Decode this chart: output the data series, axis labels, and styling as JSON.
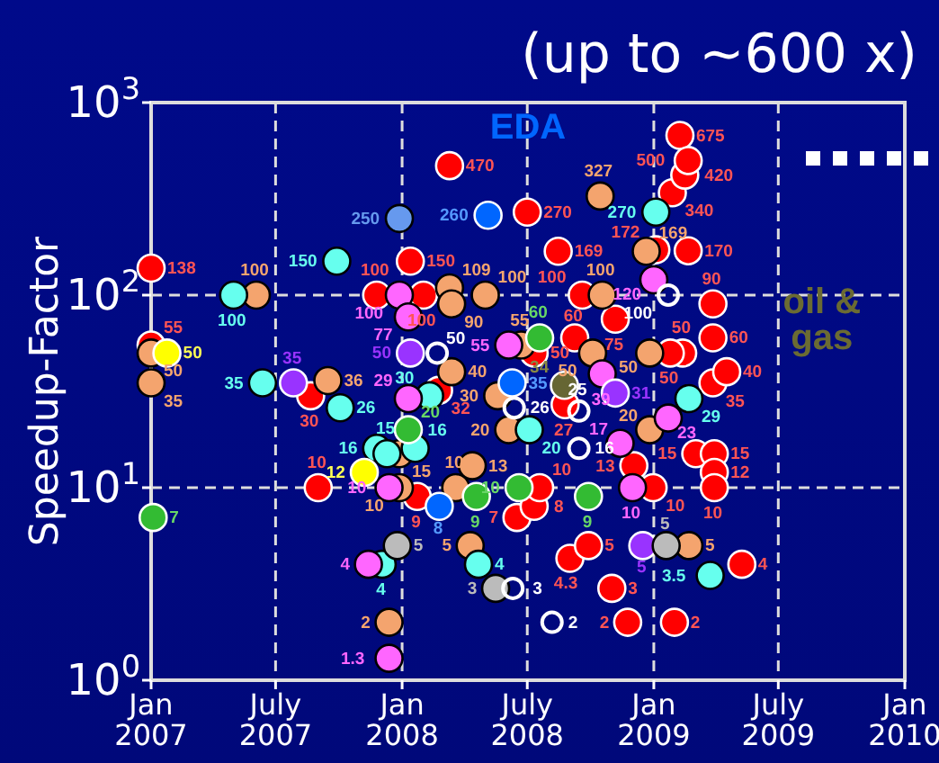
{
  "chart_data": {
    "type": "scatter",
    "title": "(up to ~600 x)",
    "ylabel": "Speedup-Factor",
    "log": "y",
    "grid": true,
    "marker": "circle",
    "data_labels": true,
    "xlim": [
      "2007-01-01",
      "2010-01-01"
    ],
    "xticks": [
      {
        "value": "2007-01-01",
        "label": "Jan 2007"
      },
      {
        "value": "2007-07-01",
        "label": "July 2007"
      },
      {
        "value": "2008-01-01",
        "label": "Jan 2008"
      },
      {
        "value": "2008-07-01",
        "label": "July 2008"
      },
      {
        "value": "2009-01-01",
        "label": "Jan 2009"
      },
      {
        "value": "2009-07-01",
        "label": "July 2009"
      },
      {
        "value": "2010-01-01",
        "label": "Jan 2010"
      }
    ],
    "ylim": [
      1,
      1000
    ],
    "yticks": [
      {
        "value": 1,
        "label": "10$^{0}$"
      },
      {
        "value": 10,
        "label": "10$^{1}$"
      },
      {
        "value": 100,
        "label": "10$^{2}$"
      },
      {
        "value": 1000,
        "label": "10$^{3}$"
      }
    ],
    "annotations": [
      "EDA",
      "oil & gas"
    ],
    "series": [
      {
        "color": "#ff0000",
        "x": [
          "2007-01-01",
          "2007-01-01",
          "2007-08-21",
          "2007-09-01",
          "2007-11-25",
          "2008-01-13",
          "2008-01-23",
          "2008-02-01",
          "2008-02-23",
          "2008-03-10",
          "2008-06-16",
          "2008-07-01",
          "2008-07-11",
          "2008-07-11",
          "2008-07-19",
          "2008-08-15",
          "2008-08-25",
          "2008-09-01",
          "2008-09-08",
          "2008-09-19",
          "2008-09-28",
          "2008-11-01",
          "2008-11-06",
          "2008-11-24",
          "2008-12-03",
          "2008-12-31",
          "2009-01-04",
          "2009-02-12",
          "2009-01-25",
          "2009-01-28",
          "2009-01-31",
          "2009-02-08",
          "2009-02-15",
          "2009-02-20",
          "2009-02-20",
          "2009-03-03",
          "2009-03-28",
          "2009-03-28",
          "2009-03-28",
          "2009-03-30",
          "2009-03-30",
          "2009-03-30",
          "2009-04-17",
          "2009-05-09"
        ],
        "values": [
          138,
          55,
          30,
          10,
          100,
          150,
          9,
          100,
          32,
          470,
          7,
          270,
          8,
          50,
          10,
          169,
          27,
          4.3,
          60,
          100,
          5,
          3,
          75,
          2,
          13,
          10,
          172,
          50,
          50,
          340,
          2,
          675,
          420,
          500,
          170,
          15,
          90,
          60,
          35,
          15,
          12,
          10,
          40,
          4
        ]
      },
      {
        "color": "#f4a46e",
        "x": [
          "2007-01-01",
          "2007-01-01",
          "2007-06-03",
          "2007-09-15",
          "2007-12-13",
          "2007-12-28",
          "2007-12-28",
          "2008-03-10",
          "2008-03-13",
          "2008-03-13",
          "2008-03-19",
          "2008-04-09",
          "2008-04-12",
          "2008-05-01",
          "2008-05-19",
          "2008-06-04",
          "2008-06-22",
          "2008-10-04",
          "2008-10-15",
          "2008-10-18",
          "2008-12-21",
          "2008-12-26",
          "2008-12-26",
          "2009-02-21"
        ],
        "values": [
          50,
          35,
          100,
          36,
          2,
          15,
          10,
          109,
          90,
          40,
          10,
          5,
          13,
          100,
          30,
          20,
          55,
          50,
          327,
          100,
          169,
          50,
          20,
          5
        ]
      },
      {
        "color": "#66ffee",
        "x": [
          "2007-05-01",
          "2007-06-12",
          "2007-09-28",
          "2007-10-03",
          "2007-11-25",
          "2007-12-03",
          "2007-12-10",
          "2008-01-20",
          "2008-02-10",
          "2008-04-21",
          "2008-07-04",
          "2009-01-04",
          "2009-02-21",
          "2009-03-24"
        ],
        "values": [
          100,
          35,
          150,
          26,
          16,
          4,
          15,
          16,
          30,
          4,
          20,
          270,
          29,
          3.5
        ]
      },
      {
        "color": "#ff66ff",
        "x": [
          "2007-11-13",
          "2007-12-13",
          "2007-12-13",
          "2007-12-28",
          "2008-01-10",
          "2008-01-10",
          "2008-06-04",
          "2008-10-18",
          "2008-11-13",
          "2008-12-01",
          "2009-01-01",
          "2009-01-22"
        ],
        "values": [
          4,
          10,
          1.3,
          100,
          77,
          29,
          55,
          39,
          17,
          10,
          120,
          23
        ]
      },
      {
        "color": "#9933ff",
        "x": [
          "2007-07-27",
          "2008-01-13",
          "2008-11-06",
          "2008-12-16"
        ],
        "values": [
          35,
          50,
          31,
          5
        ]
      },
      {
        "color": "#33bb33",
        "x": [
          "2007-01-04",
          "2008-01-10",
          "2008-04-18",
          "2008-06-19",
          "2008-07-19",
          "2008-09-28"
        ],
        "values": [
          7,
          20,
          9,
          10,
          60,
          9
        ]
      },
      {
        "color": "#ffff00",
        "x": [
          "2007-01-24",
          "2007-11-07"
        ],
        "values": [
          50,
          12
        ]
      },
      {
        "color": "#0066ff",
        "x": [
          "2008-02-24",
          "2008-05-05",
          "2008-06-09"
        ],
        "values": [
          8,
          260,
          35
        ]
      },
      {
        "color": "#6699ee",
        "x": [
          "2007-12-28"
        ],
        "values": [
          250
        ]
      },
      {
        "color": "#bbbbbb",
        "x": [
          "2007-12-25",
          "2008-05-16",
          "2009-01-19"
        ],
        "values": [
          5,
          3,
          5
        ]
      },
      {
        "color": "#ffffff",
        "x": [
          "2008-02-21",
          "2008-06-10",
          "2008-06-12",
          "2008-08-06",
          "2008-09-14",
          "2008-09-14",
          "2009-01-22"
        ],
        "values": [
          50,
          3,
          26,
          2,
          25,
          16,
          100
        ]
      },
      {
        "color": "#666633",
        "x": [
          "2008-08-24"
        ],
        "values": [
          34
        ]
      }
    ]
  }
}
